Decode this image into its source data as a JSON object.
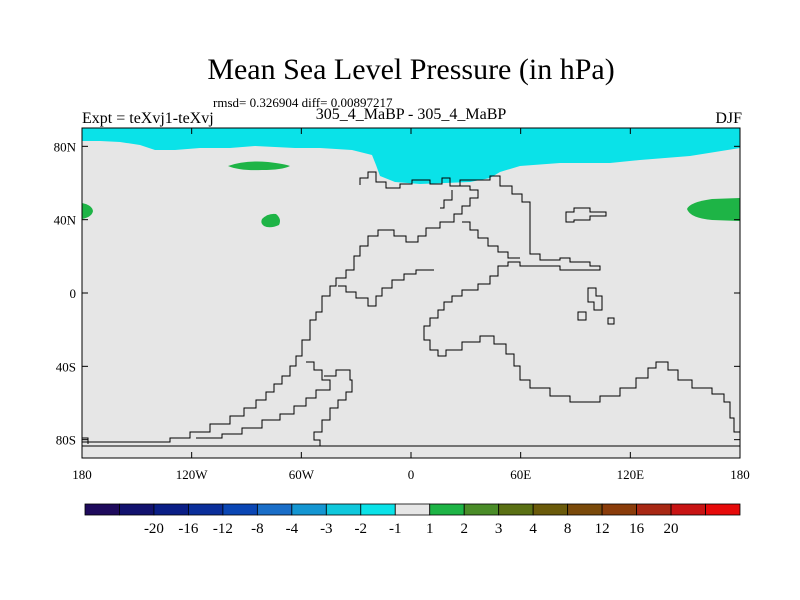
{
  "chart_data": {
    "type": "heatmap",
    "title": "Mean Sea Level Pressure (in hPa)",
    "stats": "rmsd= 0.326904 diff= 0.00897217",
    "left_label": "Expt = teXvj1-teXvj",
    "subtitle": "305_4_MaBP - 305_4_MaBP",
    "right_label": "DJF",
    "xlim": [
      -180,
      180
    ],
    "ylim": [
      -90,
      90
    ],
    "x_ticks": [
      {
        "value": -180,
        "label": "180"
      },
      {
        "value": -120,
        "label": "120W"
      },
      {
        "value": -60,
        "label": "60W"
      },
      {
        "value": 0,
        "label": "0"
      },
      {
        "value": 60,
        "label": "60E"
      },
      {
        "value": 120,
        "label": "120E"
      },
      {
        "value": 180,
        "label": "180"
      }
    ],
    "y_ticks": [
      {
        "value": 80,
        "label": "80N"
      },
      {
        "value": 40,
        "label": "40N"
      },
      {
        "value": 0,
        "label": "0"
      },
      {
        "value": -40,
        "label": "40S"
      },
      {
        "value": -80,
        "label": "80S"
      }
    ],
    "colorbar": {
      "colors": [
        "#1e0a5c",
        "#12126e",
        "#0a1e86",
        "#0a2e9a",
        "#0a46b4",
        "#1a6ec8",
        "#1496d2",
        "#10c8dc",
        "#0ae2e8",
        "#e6e6e6",
        "#1eb446",
        "#4a8c28",
        "#5a7014",
        "#6a5a0a",
        "#7a4a0a",
        "#8a3c0a",
        "#a82814",
        "#c81414",
        "#e60a0a"
      ],
      "labels": [
        "-20",
        "-16",
        "-12",
        "-8",
        "-4",
        "-3",
        "-2",
        "-1",
        "1",
        "2",
        "3",
        "4",
        "8",
        "12",
        "16",
        "20"
      ]
    },
    "background_color": "#e6e6e6",
    "regions": [
      {
        "class": "-2 to -1",
        "color": "#0ae2e8",
        "description": "Arctic band (north polar low anomaly)"
      },
      {
        "class": "1 to 2",
        "color": "#1eb446",
        "description": "small positive anomaly patches"
      }
    ]
  }
}
